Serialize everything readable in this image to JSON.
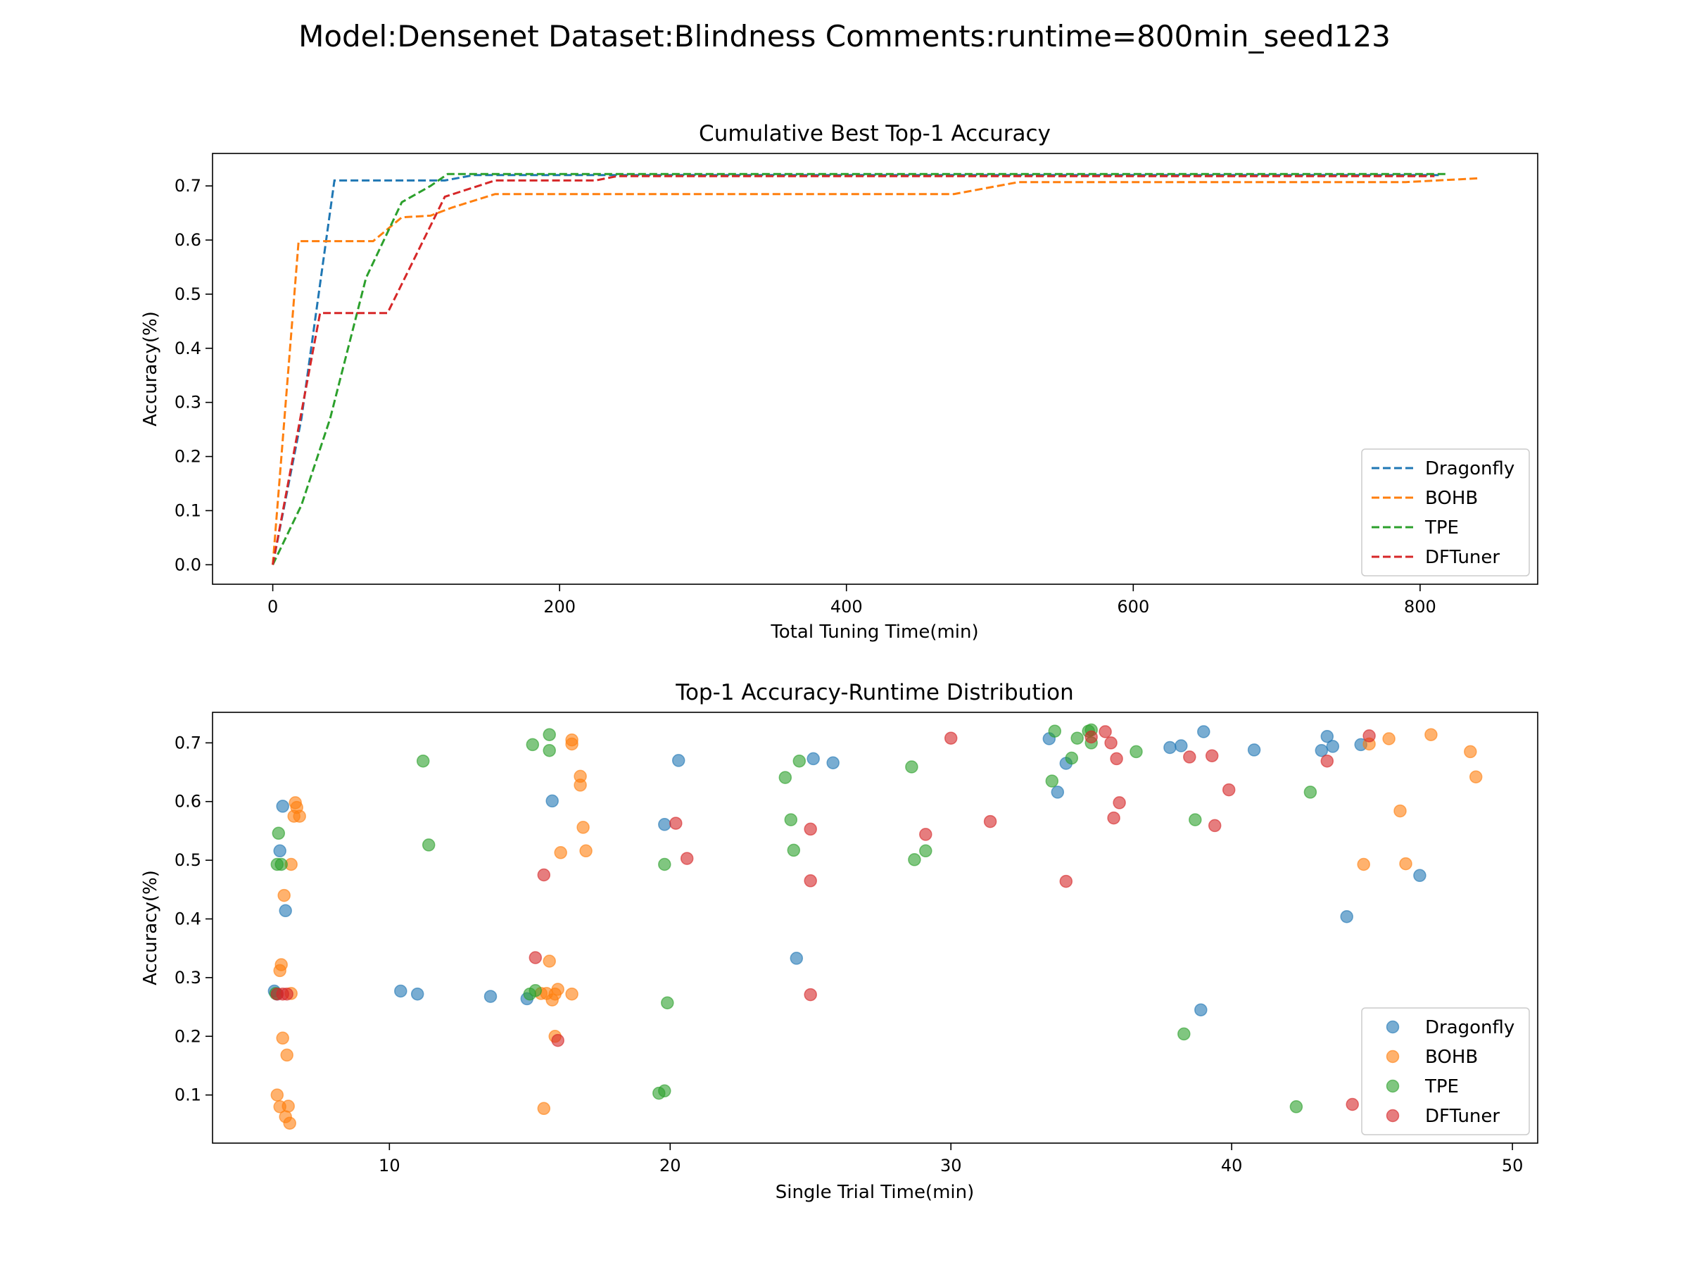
{
  "figure_title": "Model:Densenet Dataset:Blindness Comments:runtime=800min_seed123",
  "colors": {
    "Dragonfly": "#1f77b4",
    "BOHB": "#ff7f0e",
    "TPE": "#2ca02c",
    "DFTuner": "#d62728"
  },
  "chart_data": [
    {
      "type": "line",
      "title": "Cumulative Best Top-1 Accuracy",
      "xlabel": "Total Tuning Time(min)",
      "ylabel": "Accuracy(%)",
      "xlim": [
        -42,
        882
      ],
      "ylim": [
        -0.036,
        0.76
      ],
      "xticks": [
        0,
        200,
        400,
        600,
        800
      ],
      "yticks": [
        0.0,
        0.1,
        0.2,
        0.3,
        0.4,
        0.5,
        0.6,
        0.7
      ],
      "ytick_labels": [
        "0.0",
        "0.1",
        "0.2",
        "0.3",
        "0.4",
        "0.5",
        "0.6",
        "0.7"
      ],
      "legend_position": "lower-right",
      "line_style": "dashed",
      "series": [
        {
          "name": "Dragonfly",
          "points": [
            [
              0,
              0
            ],
            [
              20,
              0.27
            ],
            [
              43,
              0.71
            ],
            [
              120,
              0.71
            ],
            [
              140,
              0.72
            ],
            [
              815,
              0.72
            ]
          ]
        },
        {
          "name": "BOHB",
          "points": [
            [
              0,
              0
            ],
            [
              18,
              0.598
            ],
            [
              70,
              0.598
            ],
            [
              90,
              0.642
            ],
            [
              110,
              0.645
            ],
            [
              125,
              0.66
            ],
            [
              155,
              0.685
            ],
            [
              475,
              0.685
            ],
            [
              520,
              0.707
            ],
            [
              790,
              0.707
            ],
            [
              840,
              0.714
            ]
          ]
        },
        {
          "name": "TPE",
          "points": [
            [
              0,
              0
            ],
            [
              20,
              0.11
            ],
            [
              40,
              0.27
            ],
            [
              65,
              0.53
            ],
            [
              90,
              0.67
            ],
            [
              110,
              0.7
            ],
            [
              122,
              0.722
            ],
            [
              820,
              0.722
            ]
          ]
        },
        {
          "name": "DFTuner",
          "points": [
            [
              0,
              0
            ],
            [
              33,
              0.465
            ],
            [
              80,
              0.465
            ],
            [
              120,
              0.68
            ],
            [
              155,
              0.71
            ],
            [
              225,
              0.71
            ],
            [
              240,
              0.718
            ],
            [
              810,
              0.718
            ]
          ]
        }
      ]
    },
    {
      "type": "scatter",
      "title": "Top-1 Accuracy-Runtime Distribution",
      "xlabel": "Single Trial Time(min)",
      "ylabel": "Accuracy(%)",
      "xlim": [
        3.7,
        50.9
      ],
      "ylim": [
        0.018,
        0.752
      ],
      "xticks": [
        10,
        20,
        30,
        40,
        50
      ],
      "yticks": [
        0.1,
        0.2,
        0.3,
        0.4,
        0.5,
        0.6,
        0.7
      ],
      "ytick_labels": [
        "0.1",
        "0.2",
        "0.3",
        "0.4",
        "0.5",
        "0.6",
        "0.7"
      ],
      "legend_position": "lower-right",
      "marker_alpha": 0.6,
      "series": [
        {
          "name": "Dragonfly",
          "points": [
            [
              5.9,
              0.277
            ],
            [
              6.0,
              0.272
            ],
            [
              6.1,
              0.516
            ],
            [
              6.2,
              0.592
            ],
            [
              6.3,
              0.414
            ],
            [
              10.4,
              0.277
            ],
            [
              11.0,
              0.272
            ],
            [
              13.6,
              0.268
            ],
            [
              14.9,
              0.264
            ],
            [
              15.8,
              0.601
            ],
            [
              19.8,
              0.561
            ],
            [
              20.3,
              0.67
            ],
            [
              24.5,
              0.333
            ],
            [
              25.1,
              0.673
            ],
            [
              25.8,
              0.666
            ],
            [
              33.5,
              0.707
            ],
            [
              33.8,
              0.616
            ],
            [
              34.1,
              0.665
            ],
            [
              37.8,
              0.692
            ],
            [
              38.2,
              0.695
            ],
            [
              38.9,
              0.245
            ],
            [
              39.0,
              0.719
            ],
            [
              40.8,
              0.688
            ],
            [
              43.2,
              0.687
            ],
            [
              43.4,
              0.711
            ],
            [
              43.6,
              0.694
            ],
            [
              44.1,
              0.404
            ],
            [
              44.6,
              0.697
            ],
            [
              46.7,
              0.474
            ]
          ]
        },
        {
          "name": "BOHB",
          "points": [
            [
              6.0,
              0.1
            ],
            [
              6.1,
              0.08
            ],
            [
              6.1,
              0.312
            ],
            [
              6.15,
              0.322
            ],
            [
              6.2,
              0.197
            ],
            [
              6.25,
              0.44
            ],
            [
              6.3,
              0.063
            ],
            [
              6.35,
              0.168
            ],
            [
              6.4,
              0.081
            ],
            [
              6.45,
              0.052
            ],
            [
              6.5,
              0.493
            ],
            [
              6.6,
              0.575
            ],
            [
              6.65,
              0.598
            ],
            [
              6.7,
              0.59
            ],
            [
              6.8,
              0.575
            ],
            [
              15.5,
              0.077
            ],
            [
              15.7,
              0.328
            ],
            [
              15.8,
              0.262
            ],
            [
              15.9,
              0.2
            ],
            [
              16.0,
              0.28
            ],
            [
              16.1,
              0.513
            ],
            [
              16.5,
              0.272
            ],
            [
              16.5,
              0.705
            ],
            [
              16.5,
              0.698
            ],
            [
              16.8,
              0.643
            ],
            [
              16.8,
              0.628
            ],
            [
              16.9,
              0.556
            ],
            [
              17.0,
              0.516
            ],
            [
              44.7,
              0.493
            ],
            [
              44.9,
              0.698
            ],
            [
              45.6,
              0.707
            ],
            [
              46.0,
              0.584
            ],
            [
              46.2,
              0.494
            ],
            [
              47.1,
              0.714
            ],
            [
              48.5,
              0.685
            ],
            [
              48.7,
              0.642
            ],
            [
              15.4,
              0.273
            ],
            [
              15.6,
              0.273
            ],
            [
              15.9,
              0.272
            ],
            [
              6.5,
              0.273
            ]
          ]
        },
        {
          "name": "TPE",
          "points": [
            [
              5.95,
              0.273
            ],
            [
              6.0,
              0.493
            ],
            [
              6.05,
              0.546
            ],
            [
              6.15,
              0.493
            ],
            [
              11.2,
              0.669
            ],
            [
              11.4,
              0.526
            ],
            [
              15.0,
              0.272
            ],
            [
              15.1,
              0.697
            ],
            [
              15.2,
              0.278
            ],
            [
              15.7,
              0.714
            ],
            [
              15.7,
              0.687
            ],
            [
              19.6,
              0.103
            ],
            [
              19.8,
              0.107
            ],
            [
              19.8,
              0.493
            ],
            [
              19.9,
              0.257
            ],
            [
              24.1,
              0.641
            ],
            [
              24.3,
              0.569
            ],
            [
              24.4,
              0.517
            ],
            [
              24.6,
              0.669
            ],
            [
              28.6,
              0.659
            ],
            [
              28.7,
              0.501
            ],
            [
              29.1,
              0.516
            ],
            [
              33.6,
              0.635
            ],
            [
              33.7,
              0.72
            ],
            [
              34.3,
              0.674
            ],
            [
              34.5,
              0.708
            ],
            [
              34.9,
              0.72
            ],
            [
              35.0,
              0.722
            ],
            [
              35.0,
              0.7
            ],
            [
              36.6,
              0.685
            ],
            [
              38.3,
              0.204
            ],
            [
              38.7,
              0.569
            ],
            [
              42.3,
              0.08
            ],
            [
              42.8,
              0.616
            ]
          ]
        },
        {
          "name": "DFTuner",
          "points": [
            [
              6.0,
              0.272
            ],
            [
              6.2,
              0.272
            ],
            [
              6.35,
              0.272
            ],
            [
              15.2,
              0.334
            ],
            [
              15.5,
              0.475
            ],
            [
              16.0,
              0.193
            ],
            [
              20.2,
              0.563
            ],
            [
              20.6,
              0.503
            ],
            [
              25.0,
              0.553
            ],
            [
              25.0,
              0.465
            ],
            [
              25.0,
              0.271
            ],
            [
              29.1,
              0.544
            ],
            [
              30.0,
              0.708
            ],
            [
              31.4,
              0.566
            ],
            [
              34.1,
              0.464
            ],
            [
              35.0,
              0.71
            ],
            [
              35.5,
              0.719
            ],
            [
              35.7,
              0.7
            ],
            [
              35.8,
              0.572
            ],
            [
              35.9,
              0.673
            ],
            [
              36.0,
              0.598
            ],
            [
              38.5,
              0.676
            ],
            [
              39.3,
              0.678
            ],
            [
              39.4,
              0.559
            ],
            [
              39.9,
              0.62
            ],
            [
              43.4,
              0.669
            ],
            [
              44.3,
              0.084
            ],
            [
              44.9,
              0.712
            ]
          ]
        }
      ]
    }
  ]
}
